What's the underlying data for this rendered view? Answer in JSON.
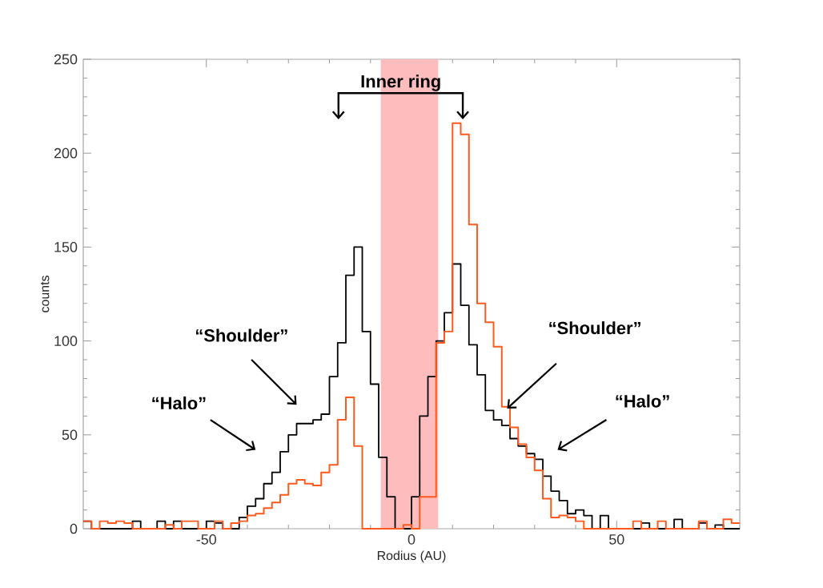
{
  "chart_data": {
    "type": "histogram",
    "xlabel": "Rodius (AU)",
    "ylabel": "counts",
    "bins": [
      -80,
      -78,
      -76,
      -74,
      -72,
      -70,
      -68,
      -66,
      -64,
      -62,
      -60,
      -58,
      -56,
      -54,
      -52,
      -50,
      -48,
      -46,
      -44,
      -42,
      -40,
      -38,
      -36,
      -34,
      -32,
      -30,
      -28,
      -26,
      -24,
      -22,
      -20,
      -18,
      -16,
      -14,
      -12,
      -10,
      -8,
      -6,
      -4,
      -2,
      0,
      2,
      4,
      6,
      8,
      10,
      12,
      14,
      16,
      18,
      20,
      22,
      24,
      26,
      28,
      30,
      32,
      34,
      36,
      38,
      40,
      42,
      44,
      46,
      48,
      50,
      52,
      54,
      56,
      58,
      60,
      62,
      64,
      66,
      68,
      70,
      72,
      74,
      76,
      78,
      80
    ],
    "series": [
      {
        "color": "#000000",
        "values": [
          4,
          0,
          0,
          0,
          0,
          0,
          4,
          0,
          0,
          4,
          0,
          4,
          0,
          0,
          0,
          4,
          3,
          0,
          0,
          6,
          12,
          16,
          24,
          30,
          41,
          50,
          56,
          56,
          58,
          61,
          81,
          99,
          135,
          150,
          105,
          77,
          38,
          17,
          0,
          0,
          17,
          60,
          81,
          100,
          115,
          141,
          119,
          98,
          82,
          63,
          58,
          55,
          48,
          44,
          40,
          37,
          28,
          20,
          15,
          8,
          10,
          7,
          0,
          7,
          0,
          0,
          0,
          0,
          3,
          0,
          0,
          0,
          5,
          0,
          0,
          3,
          0,
          2,
          0,
          0
        ]
      },
      {
        "color": "#ff5a1e",
        "values": [
          4,
          0,
          4,
          3,
          4,
          3,
          0,
          0,
          0,
          0,
          2,
          0,
          4,
          4,
          0,
          0,
          4,
          0,
          3,
          4,
          7,
          8,
          11,
          14,
          18,
          24,
          26,
          24,
          23,
          30,
          34,
          58,
          70,
          44,
          0,
          0,
          0,
          0,
          0,
          2,
          0,
          17,
          17,
          99,
          105,
          216,
          210,
          162,
          120,
          110,
          97,
          65,
          54,
          45,
          38,
          31,
          16,
          6,
          7,
          6,
          4,
          0,
          0,
          0,
          0,
          0,
          0,
          4,
          0,
          0,
          4,
          0,
          0,
          0,
          0,
          4,
          0,
          0,
          5,
          3
        ]
      }
    ],
    "xlim": [
      -80,
      80
    ],
    "ylim": [
      0,
      250
    ],
    "xticks": [
      -50,
      0,
      50
    ],
    "yticks": [
      0,
      50,
      100,
      150,
      200,
      250
    ],
    "bands": [
      {
        "axis": "x",
        "from": -7.5,
        "to": 6.5,
        "color": "#ffbcbc"
      }
    ],
    "annotations": [
      "Inner ring",
      "“Shoulder”",
      "“Halo”",
      "“Shoulder”",
      "“Halo”"
    ]
  }
}
